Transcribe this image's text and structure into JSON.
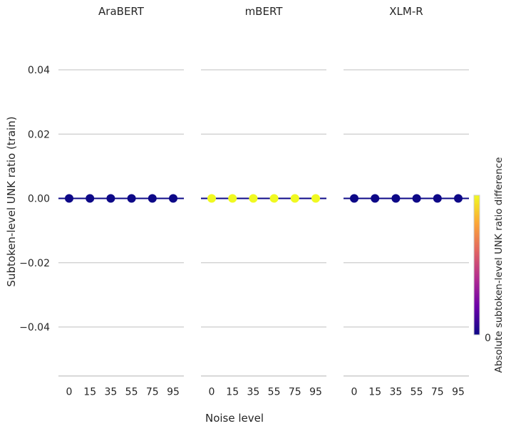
{
  "chart_data": {
    "type": "scatter",
    "ylabel": "Subtoken-level UNK ratio (train)",
    "xlabel": "Noise level",
    "x": [
      "0",
      "15",
      "35",
      "55",
      "75",
      "95"
    ],
    "yticks": [
      "0.04",
      "0.02",
      "0.00",
      "−0.02",
      "−0.04"
    ],
    "ytick_values": [
      0.04,
      0.02,
      0.0,
      -0.02,
      -0.04
    ],
    "ylim": [
      -0.055,
      0.0555
    ],
    "grid": true,
    "panels": [
      {
        "title": "AraBERT",
        "values": [
          0,
          0,
          0,
          0,
          0,
          0
        ],
        "marker_color": "#0d0887",
        "line_color": "#0d0887"
      },
      {
        "title": "mBERT",
        "values": [
          0,
          0,
          0,
          0,
          0,
          0
        ],
        "marker_color": "#f0f921",
        "line_color": "#0d0887"
      },
      {
        "title": "XLM-R",
        "values": [
          0,
          0,
          0,
          0,
          0,
          0
        ],
        "marker_color": "#0d0887",
        "line_color": "#0d0887"
      }
    ],
    "colorbar": {
      "label": "Absolute subtoken-level UNK ratio difference",
      "tick": "0",
      "colormap": [
        "#0d0887",
        "#6a00a8",
        "#b12a90",
        "#e16462",
        "#fca636",
        "#f0f921"
      ]
    }
  }
}
